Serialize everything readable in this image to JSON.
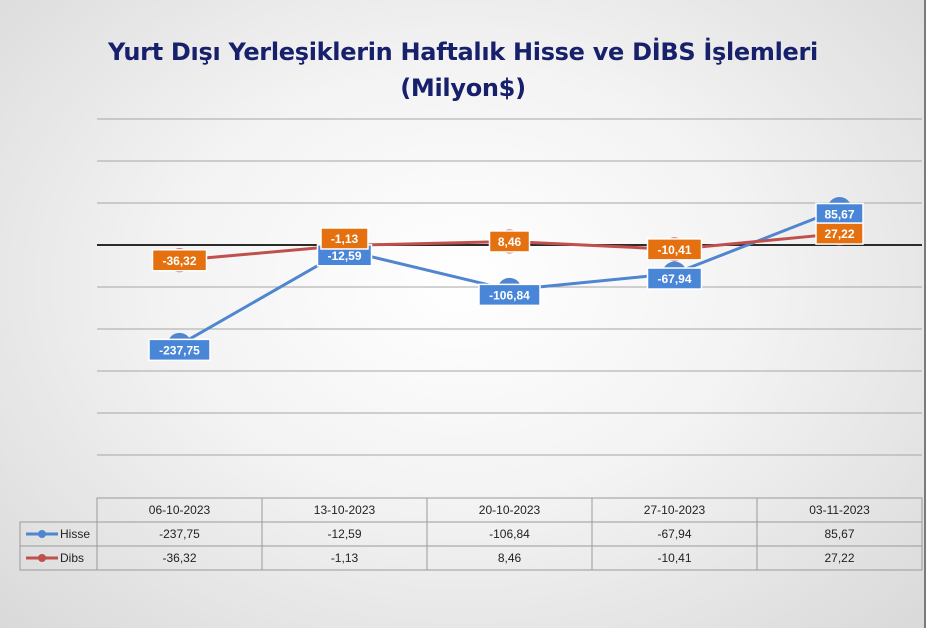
{
  "title_line1": "Yurt Dışı Yerleşiklerin Haftalık Hisse ve DİBS İşlemleri",
  "title_line2": "(Milyon$)",
  "colors": {
    "hisse": "#4f86cf",
    "dibs": "#c0504d",
    "hisse_label_bg": "#4a86d8",
    "dibs_label_bg": "#e4700f",
    "title": "#16206b"
  },
  "chart_data": {
    "type": "line",
    "categories": [
      "06-10-2023",
      "13-10-2023",
      "20-10-2023",
      "27-10-2023",
      "03-11-2023"
    ],
    "series": [
      {
        "name": "Hisse",
        "values": [
          -237.75,
          -12.59,
          -106.84,
          -67.94,
          85.67
        ],
        "labels": [
          "-237,75",
          "-12,59",
          "-106,84",
          "-67,94",
          "85,67"
        ]
      },
      {
        "name": "Dibs",
        "values": [
          -36.32,
          -1.13,
          8.46,
          -10.41,
          27.22
        ],
        "labels": [
          "-36,32",
          "-1,13",
          "8,46",
          "-10,41",
          "27,22"
        ]
      }
    ],
    "data_table": true,
    "grid": true
  }
}
